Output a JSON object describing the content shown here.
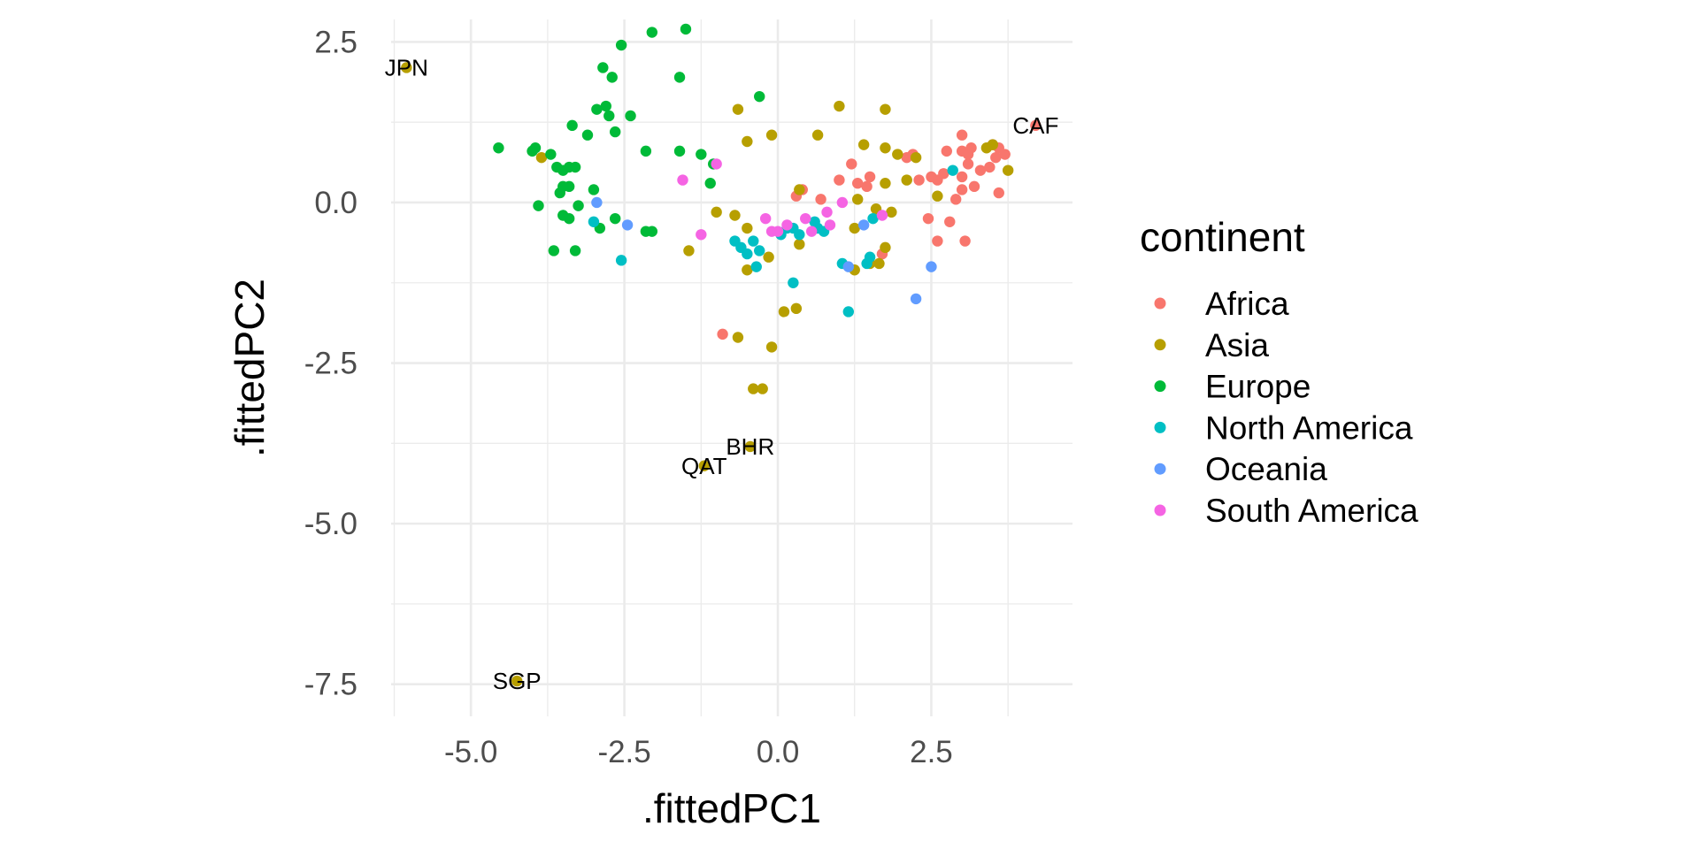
{
  "chart_data": {
    "type": "scatter",
    "xlabel": ".fittedPC1",
    "ylabel": ".fittedPC2",
    "xlim": [
      -6.3,
      4.8
    ],
    "ylim": [
      -8.0,
      2.85
    ],
    "x_ticks": [
      -5.0,
      -2.5,
      0.0,
      2.5
    ],
    "x_tick_labels": [
      "-5.0",
      "-2.5",
      "0.0",
      "2.5"
    ],
    "y_ticks": [
      2.5,
      0.0,
      -2.5,
      -5.0,
      -7.5
    ],
    "y_tick_labels": [
      "2.5",
      "0.0",
      "-2.5",
      "-5.0",
      "-7.5"
    ],
    "grid": true,
    "legend": {
      "title": "continent",
      "position": "right"
    },
    "series": [
      {
        "name": "Africa",
        "color": "#F8766D",
        "points": [
          [
            4.2,
            1.2
          ],
          [
            3.7,
            0.75
          ],
          [
            3.6,
            0.85
          ],
          [
            3.5,
            0.9
          ],
          [
            3.55,
            0.7
          ],
          [
            3.45,
            0.55
          ],
          [
            3.6,
            0.15
          ],
          [
            3.3,
            0.5
          ],
          [
            3.2,
            0.25
          ],
          [
            3.1,
            0.6
          ],
          [
            3.1,
            0.75
          ],
          [
            3.15,
            0.85
          ],
          [
            3.0,
            0.8
          ],
          [
            3.0,
            0.4
          ],
          [
            3.0,
            1.05
          ],
          [
            3.0,
            0.2
          ],
          [
            2.9,
            0.05
          ],
          [
            2.8,
            -0.3
          ],
          [
            2.75,
            0.8
          ],
          [
            2.7,
            0.45
          ],
          [
            2.6,
            0.35
          ],
          [
            2.5,
            0.4
          ],
          [
            2.45,
            -0.25
          ],
          [
            2.6,
            -0.6
          ],
          [
            2.3,
            0.35
          ],
          [
            2.1,
            0.7
          ],
          [
            2.2,
            0.75
          ],
          [
            3.05,
            -0.6
          ],
          [
            1.5,
            0.4
          ],
          [
            1.45,
            0.25
          ],
          [
            1.2,
            0.6
          ],
          [
            1.3,
            0.3
          ],
          [
            1.0,
            0.35
          ],
          [
            0.7,
            0.05
          ],
          [
            0.4,
            0.2
          ],
          [
            0.3,
            0.1
          ],
          [
            1.7,
            -0.8
          ],
          [
            -0.9,
            -2.05
          ]
        ]
      },
      {
        "name": "Asia",
        "color": "#B79F00",
        "points": [
          [
            -6.05,
            2.1
          ],
          [
            -4.25,
            -7.45
          ],
          [
            -1.2,
            -4.1
          ],
          [
            -0.45,
            -3.8
          ],
          [
            -0.4,
            -2.9
          ],
          [
            -0.25,
            -2.9
          ],
          [
            -0.1,
            -2.25
          ],
          [
            0.1,
            -1.7
          ],
          [
            0.3,
            -1.65
          ],
          [
            -0.65,
            -2.1
          ],
          [
            -0.5,
            -1.05
          ],
          [
            -0.15,
            -0.85
          ],
          [
            -0.5,
            -0.4
          ],
          [
            -0.7,
            -0.2
          ],
          [
            -1.0,
            -0.15
          ],
          [
            -1.45,
            -0.75
          ],
          [
            -3.85,
            0.7
          ],
          [
            -0.65,
            1.45
          ],
          [
            -0.5,
            0.95
          ],
          [
            -0.1,
            1.05
          ],
          [
            0.65,
            1.05
          ],
          [
            1.0,
            1.5
          ],
          [
            1.75,
            1.45
          ],
          [
            1.4,
            0.9
          ],
          [
            1.75,
            0.85
          ],
          [
            1.95,
            0.75
          ],
          [
            2.25,
            0.7
          ],
          [
            1.75,
            0.3
          ],
          [
            2.1,
            0.35
          ],
          [
            1.3,
            0.05
          ],
          [
            2.6,
            0.1
          ],
          [
            3.4,
            0.85
          ],
          [
            3.5,
            0.9
          ],
          [
            3.75,
            0.5
          ],
          [
            0.35,
            0.2
          ],
          [
            0.35,
            -0.65
          ],
          [
            1.25,
            -1.05
          ],
          [
            1.5,
            -0.95
          ],
          [
            1.65,
            -0.95
          ],
          [
            1.75,
            -0.7
          ],
          [
            1.25,
            -0.4
          ],
          [
            1.85,
            -0.15
          ],
          [
            1.6,
            -0.1
          ]
        ]
      },
      {
        "name": "Europe",
        "color": "#00BA38",
        "points": [
          [
            -4.55,
            0.85
          ],
          [
            -4.0,
            0.8
          ],
          [
            -3.95,
            0.85
          ],
          [
            -3.7,
            0.75
          ],
          [
            -3.6,
            0.55
          ],
          [
            -3.4,
            0.55
          ],
          [
            -3.5,
            0.5
          ],
          [
            -3.3,
            0.55
          ],
          [
            -3.5,
            0.25
          ],
          [
            -3.4,
            0.25
          ],
          [
            -3.55,
            0.15
          ],
          [
            -3.25,
            -0.05
          ],
          [
            -3.1,
            1.05
          ],
          [
            -3.35,
            1.2
          ],
          [
            -3.0,
            0.2
          ],
          [
            -3.5,
            -0.2
          ],
          [
            -3.4,
            -0.25
          ],
          [
            -3.9,
            -0.05
          ],
          [
            -3.65,
            -0.75
          ],
          [
            -3.3,
            -0.75
          ],
          [
            -2.9,
            -0.4
          ],
          [
            -2.95,
            1.45
          ],
          [
            -2.8,
            1.5
          ],
          [
            -2.75,
            1.35
          ],
          [
            -2.65,
            1.1
          ],
          [
            -2.4,
            1.35
          ],
          [
            -2.85,
            2.1
          ],
          [
            -2.7,
            1.95
          ],
          [
            -2.55,
            2.45
          ],
          [
            -2.05,
            2.65
          ],
          [
            -1.5,
            2.7
          ],
          [
            -1.6,
            1.95
          ],
          [
            -2.15,
            0.8
          ],
          [
            -1.6,
            0.8
          ],
          [
            -1.25,
            0.75
          ],
          [
            -1.05,
            0.6
          ],
          [
            -1.1,
            0.3
          ],
          [
            -0.3,
            1.65
          ],
          [
            -2.65,
            -0.25
          ],
          [
            -2.15,
            -0.45
          ],
          [
            -2.05,
            -0.45
          ]
        ]
      },
      {
        "name": "North America",
        "color": "#00BFC4",
        "points": [
          [
            -3.0,
            -0.3
          ],
          [
            -2.55,
            -0.9
          ],
          [
            -0.7,
            -0.6
          ],
          [
            -0.6,
            -0.7
          ],
          [
            -0.5,
            -0.8
          ],
          [
            -0.4,
            -0.6
          ],
          [
            -0.3,
            -0.75
          ],
          [
            -0.35,
            -1.0
          ],
          [
            0.05,
            -0.5
          ],
          [
            0.15,
            -0.4
          ],
          [
            0.25,
            -0.4
          ],
          [
            0.35,
            -0.5
          ],
          [
            0.6,
            -0.3
          ],
          [
            0.65,
            -0.4
          ],
          [
            0.75,
            -0.45
          ],
          [
            0.25,
            -1.25
          ],
          [
            1.05,
            -0.95
          ],
          [
            1.15,
            -1.7
          ],
          [
            1.45,
            -0.95
          ],
          [
            1.5,
            -0.85
          ],
          [
            1.55,
            -0.25
          ],
          [
            2.85,
            0.5
          ]
        ]
      },
      {
        "name": "Oceania",
        "color": "#619CFF",
        "points": [
          [
            -2.95,
            0.0
          ],
          [
            -2.45,
            -0.35
          ],
          [
            1.15,
            -1.0
          ],
          [
            1.4,
            -0.35
          ],
          [
            2.25,
            -1.5
          ],
          [
            2.5,
            -1.0
          ]
        ]
      },
      {
        "name": "South America",
        "color": "#F564E3",
        "points": [
          [
            -1.55,
            0.35
          ],
          [
            -1.25,
            -0.5
          ],
          [
            -1.0,
            0.6
          ],
          [
            -0.2,
            -0.25
          ],
          [
            -0.1,
            -0.45
          ],
          [
            0.0,
            -0.45
          ],
          [
            0.15,
            -0.35
          ],
          [
            0.45,
            -0.25
          ],
          [
            0.55,
            -0.45
          ],
          [
            0.8,
            -0.15
          ],
          [
            0.85,
            -0.35
          ],
          [
            1.05,
            0.0
          ],
          [
            1.7,
            -0.2
          ]
        ]
      }
    ],
    "annotations": [
      {
        "text": "JPN",
        "x": -6.05,
        "y": 2.1
      },
      {
        "text": "CAF",
        "x": 4.2,
        "y": 1.2
      },
      {
        "text": "BHR",
        "x": -0.45,
        "y": -3.8
      },
      {
        "text": "QAT",
        "x": -1.2,
        "y": -4.1
      },
      {
        "text": "SGP",
        "x": -4.25,
        "y": -7.45
      }
    ]
  }
}
